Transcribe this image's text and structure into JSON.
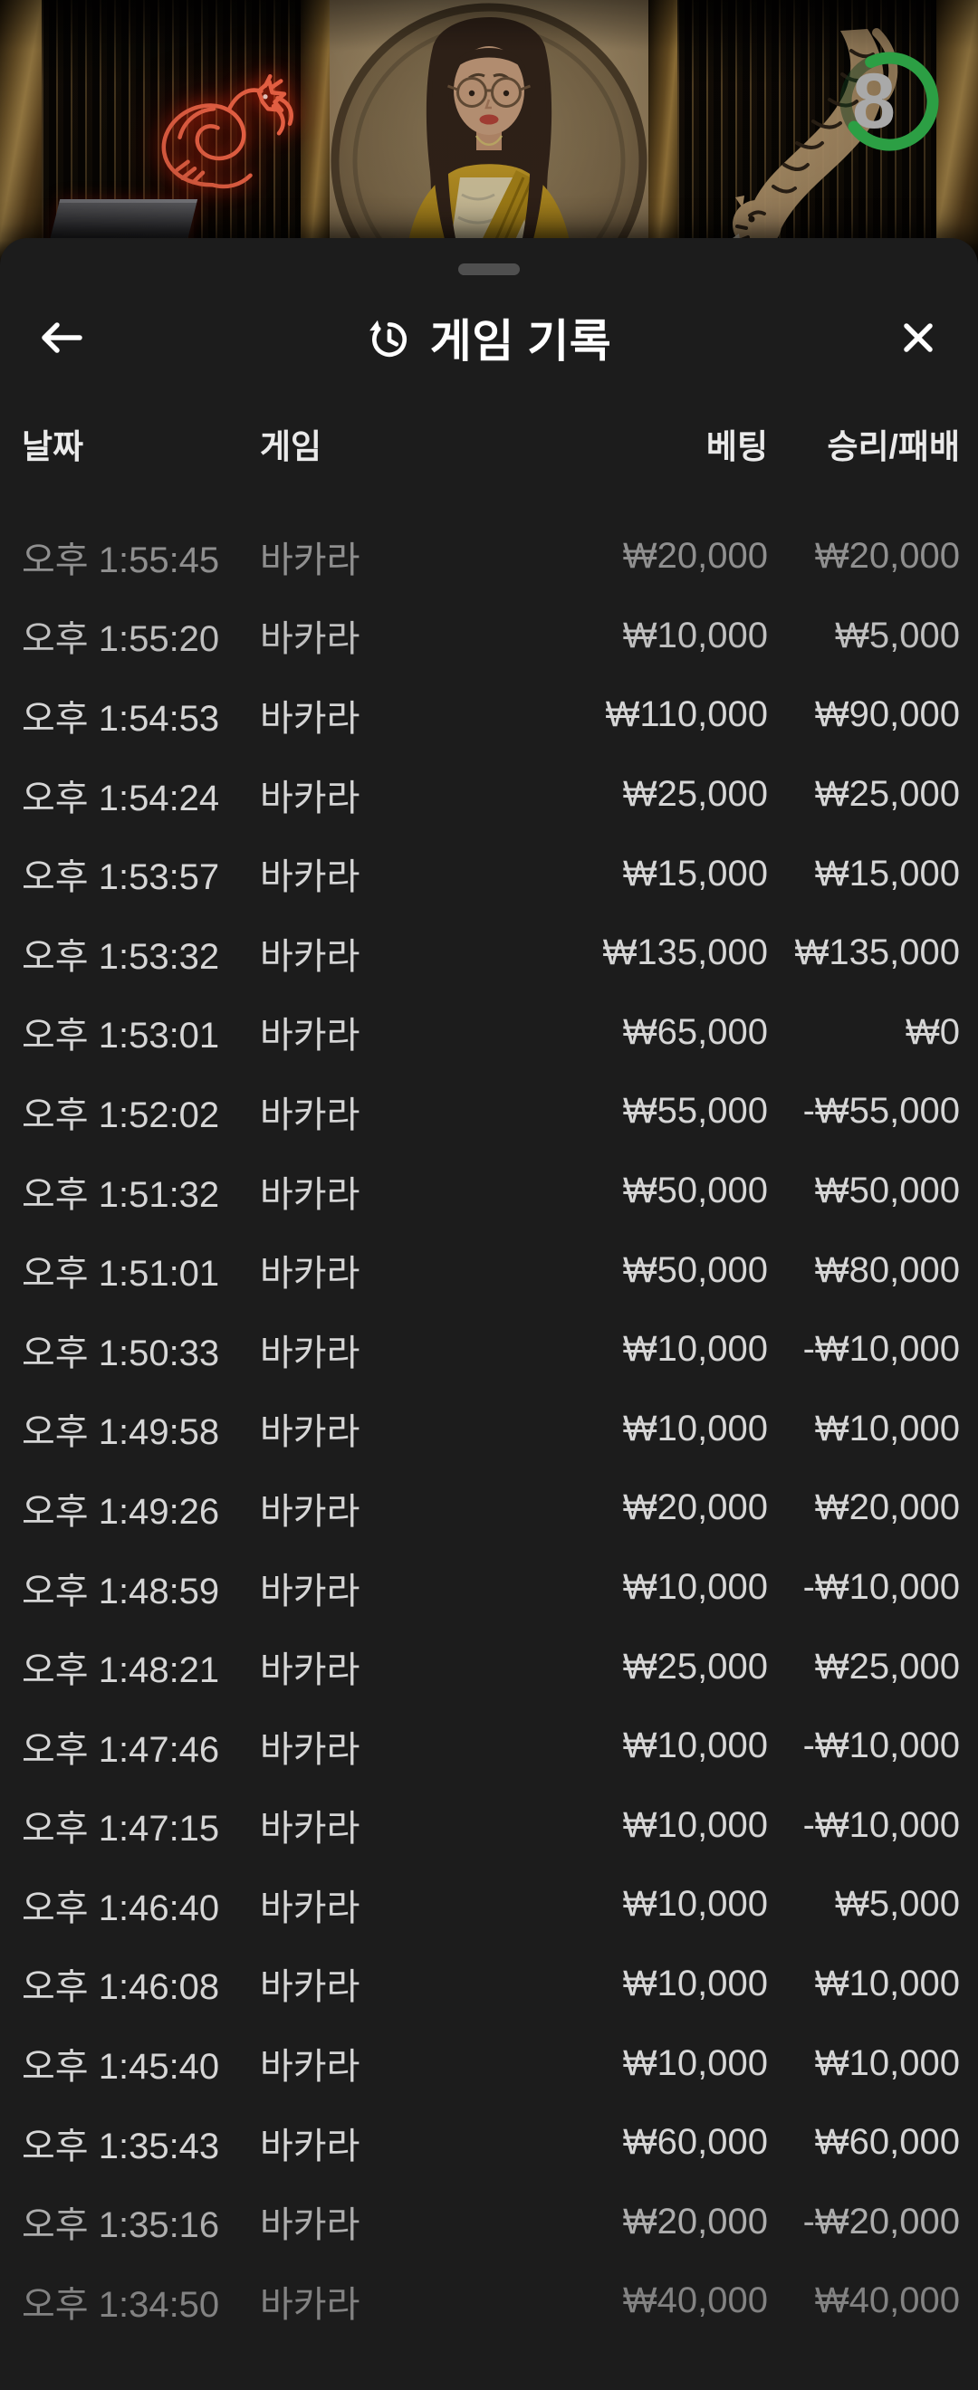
{
  "video": {
    "timer": {
      "value": "8"
    }
  },
  "panel": {
    "header": {
      "title": "게임 기록"
    },
    "columns": [
      {
        "label": "날짜"
      },
      {
        "label": "게임"
      },
      {
        "label": "베팅"
      },
      {
        "label": "승리/패배"
      }
    ],
    "rows": [
      {
        "date": "오후 1:55:45",
        "game": "바카라",
        "bet": "₩20,000",
        "result": "₩20,000",
        "fade": 0.62
      },
      {
        "date": "오후 1:55:20",
        "game": "바카라",
        "bet": "₩10,000",
        "result": "₩5,000",
        "fade": 0.88
      },
      {
        "date": "오후 1:54:53",
        "game": "바카라",
        "bet": "₩110,000",
        "result": "₩90,000"
      },
      {
        "date": "오후 1:54:24",
        "game": "바카라",
        "bet": "₩25,000",
        "result": "₩25,000"
      },
      {
        "date": "오후 1:53:57",
        "game": "바카라",
        "bet": "₩15,000",
        "result": "₩15,000"
      },
      {
        "date": "오후 1:53:32",
        "game": "바카라",
        "bet": "₩135,000",
        "result": "₩135,000"
      },
      {
        "date": "오후 1:53:01",
        "game": "바카라",
        "bet": "₩65,000",
        "result": "₩0"
      },
      {
        "date": "오후 1:52:02",
        "game": "바카라",
        "bet": "₩55,000",
        "result": "-₩55,000"
      },
      {
        "date": "오후 1:51:32",
        "game": "바카라",
        "bet": "₩50,000",
        "result": "₩50,000"
      },
      {
        "date": "오후 1:51:01",
        "game": "바카라",
        "bet": "₩50,000",
        "result": "₩80,000"
      },
      {
        "date": "오후 1:50:33",
        "game": "바카라",
        "bet": "₩10,000",
        "result": "-₩10,000"
      },
      {
        "date": "오후 1:49:58",
        "game": "바카라",
        "bet": "₩10,000",
        "result": "₩10,000"
      },
      {
        "date": "오후 1:49:26",
        "game": "바카라",
        "bet": "₩20,000",
        "result": "₩20,000"
      },
      {
        "date": "오후 1:48:59",
        "game": "바카라",
        "bet": "₩10,000",
        "result": "-₩10,000"
      },
      {
        "date": "오후 1:48:21",
        "game": "바카라",
        "bet": "₩25,000",
        "result": "₩25,000"
      },
      {
        "date": "오후 1:47:46",
        "game": "바카라",
        "bet": "₩10,000",
        "result": "-₩10,000"
      },
      {
        "date": "오후 1:47:15",
        "game": "바카라",
        "bet": "₩10,000",
        "result": "-₩10,000"
      },
      {
        "date": "오후 1:46:40",
        "game": "바카라",
        "bet": "₩10,000",
        "result": "₩5,000"
      },
      {
        "date": "오후 1:46:08",
        "game": "바카라",
        "bet": "₩10,000",
        "result": "₩10,000"
      },
      {
        "date": "오후 1:45:40",
        "game": "바카라",
        "bet": "₩10,000",
        "result": "₩10,000"
      },
      {
        "date": "오후 1:35:43",
        "game": "바카라",
        "bet": "₩60,000",
        "result": "₩60,000"
      },
      {
        "date": "오후 1:35:16",
        "game": "바카라",
        "bet": "₩20,000",
        "result": "-₩20,000",
        "fade": 0.78
      },
      {
        "date": "오후 1:34:50",
        "game": "바카라",
        "bet": "₩40,000",
        "result": "₩40,000",
        "fade": 0.55
      }
    ]
  },
  "colors": {
    "timer_green": "#2c9f44",
    "neon_red": "#ff5a3c",
    "panel_bg": "#1c1c1c",
    "row_text": "#d6d6d6"
  }
}
